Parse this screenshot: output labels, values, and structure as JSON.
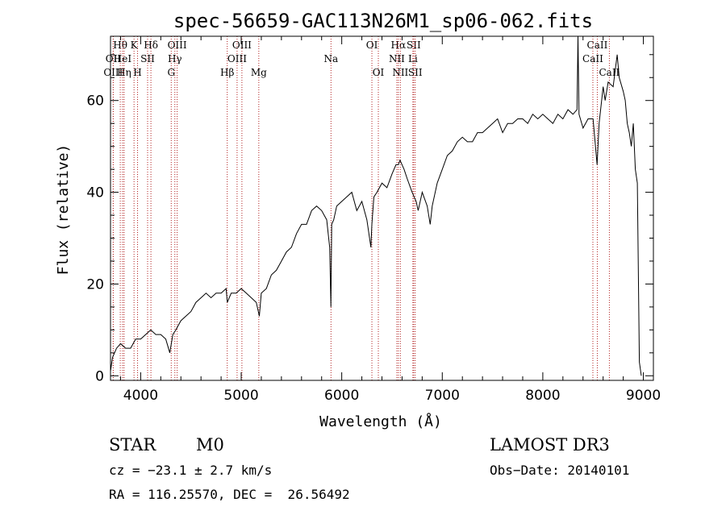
{
  "chart_data": {
    "type": "line",
    "title": "spec-56659-GAC113N26M1_sp06-062.fits",
    "xlabel": "Wavelength (Å)",
    "ylabel": "Flux (relative)",
    "xlim": [
      3700,
      9100
    ],
    "ylim": [
      -1,
      74
    ],
    "xticks": [
      4000,
      5000,
      6000,
      7000,
      8000,
      9000
    ],
    "yticks": [
      0,
      20,
      40,
      60
    ],
    "x": [
      3700,
      3720,
      3760,
      3800,
      3850,
      3900,
      3950,
      4000,
      4050,
      4100,
      4150,
      4200,
      4250,
      4290,
      4320,
      4350,
      4400,
      4450,
      4500,
      4550,
      4600,
      4650,
      4700,
      4750,
      4800,
      4850,
      4862,
      4900,
      4950,
      5000,
      5050,
      5100,
      5150,
      5180,
      5200,
      5250,
      5300,
      5350,
      5400,
      5450,
      5500,
      5550,
      5600,
      5650,
      5700,
      5750,
      5800,
      5850,
      5880,
      5892,
      5900,
      5920,
      5950,
      6000,
      6050,
      6100,
      6150,
      6200,
      6250,
      6290,
      6300,
      6320,
      6350,
      6400,
      6450,
      6500,
      6540,
      6563,
      6580,
      6600,
      6620,
      6650,
      6700,
      6740,
      6760,
      6800,
      6850,
      6880,
      6900,
      6950,
      7000,
      7050,
      7100,
      7150,
      7200,
      7250,
      7300,
      7350,
      7400,
      7450,
      7500,
      7550,
      7600,
      7650,
      7700,
      7750,
      7800,
      7850,
      7900,
      7950,
      8000,
      8050,
      8100,
      8150,
      8200,
      8250,
      8300,
      8340,
      8350,
      8360,
      8400,
      8450,
      8500,
      8540,
      8560,
      8600,
      8620,
      8650,
      8700,
      8740,
      8760,
      8800,
      8820,
      8840,
      8860,
      8880,
      8900,
      8920,
      8940,
      8960,
      8980
    ],
    "series": [
      {
        "name": "flux",
        "values": [
          1,
          4,
          6,
          7,
          6,
          6,
          8,
          8,
          9,
          10,
          9,
          9,
          8,
          5,
          9,
          10,
          12,
          13,
          14,
          16,
          17,
          18,
          17,
          18,
          18,
          19,
          16,
          18,
          18,
          19,
          18,
          17,
          16,
          13,
          18,
          19,
          22,
          23,
          25,
          27,
          28,
          31,
          33,
          33,
          36,
          37,
          36,
          34,
          28,
          15,
          33,
          34,
          37,
          38,
          39,
          40,
          36,
          38,
          34,
          28,
          33,
          39,
          40,
          42,
          41,
          44,
          46,
          46,
          47,
          46,
          45,
          43,
          40,
          38,
          36,
          40,
          37,
          33,
          37,
          42,
          45,
          48,
          49,
          51,
          52,
          51,
          51,
          53,
          53,
          54,
          55,
          56,
          53,
          55,
          55,
          56,
          56,
          55,
          57,
          56,
          57,
          56,
          55,
          57,
          56,
          58,
          57,
          58,
          75,
          57,
          54,
          56,
          56,
          46,
          55,
          63,
          60,
          64,
          63,
          70,
          65,
          62,
          60,
          55,
          53,
          50,
          55,
          45,
          42,
          3,
          0
        ]
      }
    ],
    "spectral_lines": [
      {
        "name": "Hθ",
        "wavelength": 3797,
        "row": 0
      },
      {
        "name": "OII",
        "wavelength": 3727,
        "row": 1
      },
      {
        "name": "OIII",
        "wavelength": 3727,
        "row": 2
      },
      {
        "name": "HeI",
        "wavelength": 3820,
        "row": 1
      },
      {
        "name": "Hη",
        "wavelength": 3835,
        "row": 2
      },
      {
        "name": "K",
        "wavelength": 3934,
        "row": 0
      },
      {
        "name": "SII",
        "wavelength": 4069,
        "row": 1
      },
      {
        "name": "H",
        "wavelength": 3969,
        "row": 2
      },
      {
        "name": "Hδ",
        "wavelength": 4102,
        "row": 0
      },
      {
        "name": "OIII",
        "wavelength": 4363,
        "row": 0
      },
      {
        "name": "Hγ",
        "wavelength": 4340,
        "row": 1
      },
      {
        "name": "G",
        "wavelength": 4304,
        "row": 2
      },
      {
        "name": "Hβ",
        "wavelength": 4861,
        "row": 2
      },
      {
        "name": "OIII",
        "wavelength": 5007,
        "row": 0
      },
      {
        "name": "OIII",
        "wavelength": 4959,
        "row": 1
      },
      {
        "name": "Mg",
        "wavelength": 5175,
        "row": 2
      },
      {
        "name": "Na",
        "wavelength": 5893,
        "row": 1
      },
      {
        "name": "OI",
        "wavelength": 6300,
        "row": 0
      },
      {
        "name": "OI",
        "wavelength": 6364,
        "row": 2
      },
      {
        "name": "Hα",
        "wavelength": 6563,
        "row": 0
      },
      {
        "name": "NII",
        "wavelength": 6548,
        "row": 1
      },
      {
        "name": "NII",
        "wavelength": 6583,
        "row": 2
      },
      {
        "name": "SII",
        "wavelength": 6716,
        "row": 0
      },
      {
        "name": "Li",
        "wavelength": 6708,
        "row": 1
      },
      {
        "name": "SII",
        "wavelength": 6731,
        "row": 2
      },
      {
        "name": "CaII",
        "wavelength": 8542,
        "row": 0
      },
      {
        "name": "CaII",
        "wavelength": 8498,
        "row": 1
      },
      {
        "name": "CaII",
        "wavelength": 8662,
        "row": 2
      }
    ]
  },
  "info": {
    "class": "STAR",
    "subclass": "M0",
    "survey": "LAMOST DR3",
    "cz": "cz = −23.1 ± 2.7 km/s",
    "obs_date": "Obs−Date: 20140101",
    "radec": "RA = 116.25570, DEC =  26.56492"
  },
  "colors": {
    "line_markers": "#b22222",
    "spectrum": "#000000",
    "axes": "#000000"
  }
}
